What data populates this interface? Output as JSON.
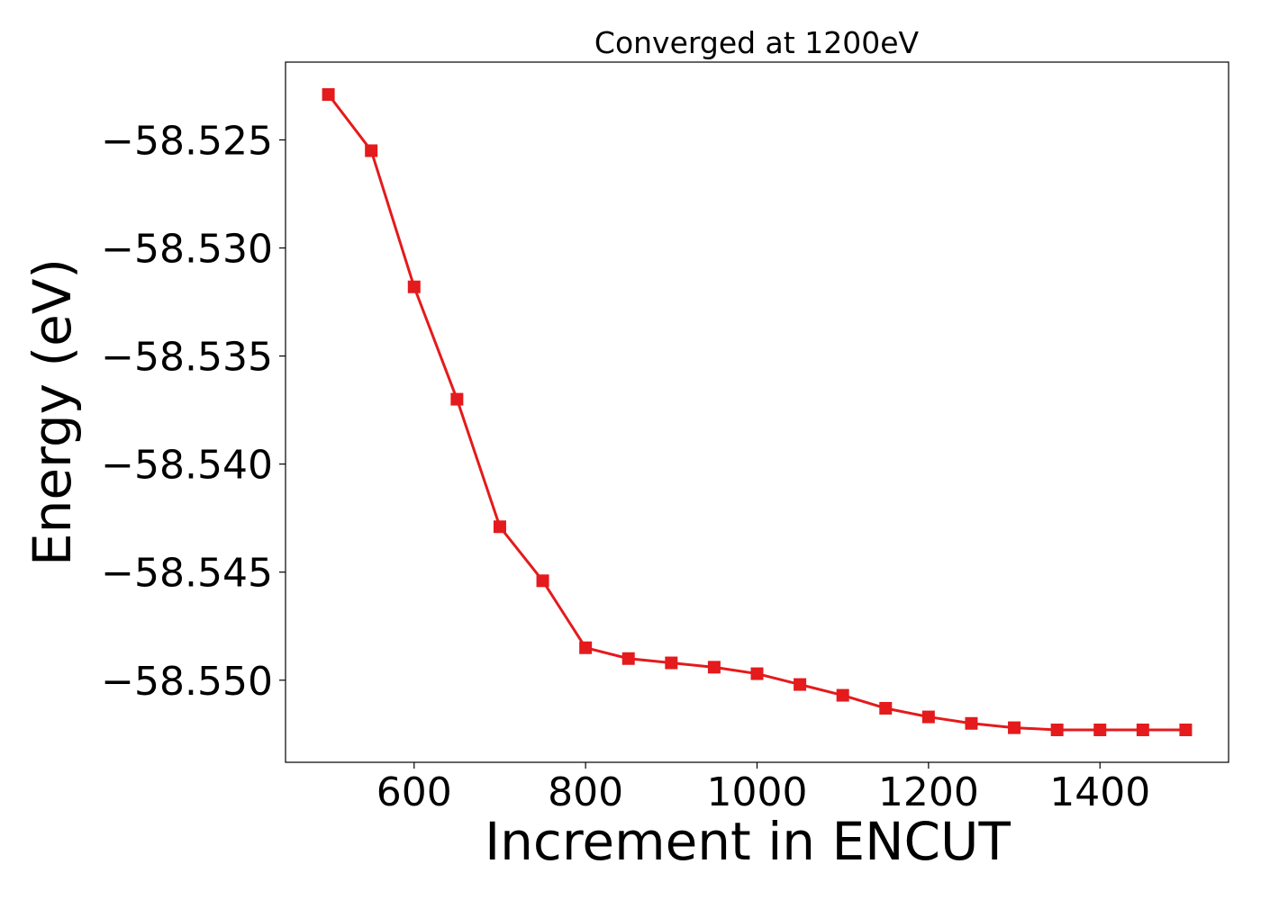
{
  "chart_data": {
    "type": "line",
    "title": "Converged at 1200eV",
    "xlabel": "Increment in ENCUT",
    "ylabel": "Energy (eV)",
    "xlim": [
      450,
      1550
    ],
    "ylim": [
      -58.5538,
      -58.5214
    ],
    "x_ticks": [
      600,
      800,
      1000,
      1200,
      1400
    ],
    "x_tick_labels": [
      "600",
      "800",
      "1000",
      "1200",
      "1400"
    ],
    "y_ticks": [
      -58.525,
      -58.53,
      -58.535,
      -58.54,
      -58.545,
      -58.55
    ],
    "y_tick_labels": [
      "−58.525",
      "−58.530",
      "−58.535",
      "−58.540",
      "−58.545",
      "−58.550"
    ],
    "grid": false,
    "series": [
      {
        "color": "#e41a1c",
        "marker": "square",
        "x": [
          500,
          550,
          600,
          650,
          700,
          750,
          800,
          850,
          900,
          950,
          1000,
          1050,
          1100,
          1150,
          1200,
          1250,
          1300,
          1350,
          1400,
          1450,
          1500
        ],
        "y": [
          -58.5229,
          -58.5255,
          -58.5318,
          -58.537,
          -58.5429,
          -58.5454,
          -58.5485,
          -58.549,
          -58.5492,
          -58.5494,
          -58.5497,
          -58.5502,
          -58.5507,
          -58.5513,
          -58.5517,
          -58.552,
          -58.5522,
          -58.5523,
          -58.5523,
          -58.5523,
          -58.5523
        ]
      }
    ]
  }
}
